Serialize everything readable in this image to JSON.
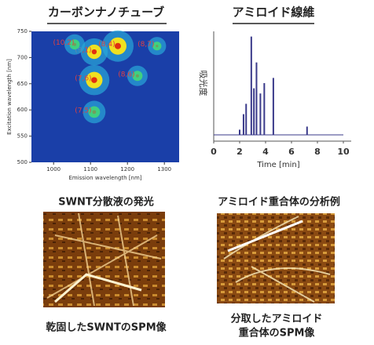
{
  "titles": [
    "カーボンナノチューブ",
    "アミロイド線維"
  ],
  "chart_data": [
    {
      "type": "heatmap",
      "xlabel": "Emission wavelength [nm]",
      "ylabel": "Excitation wavelength [nm]",
      "xlim": [
        940,
        1340
      ],
      "xticks": [
        1000,
        1100,
        1200,
        1300
      ],
      "ylim": [
        500,
        750
      ],
      "yticks": [
        500,
        550,
        600,
        650,
        700,
        750
      ],
      "spots": [
        {
          "x": 1110,
          "y": 711,
          "intensity": 0.8,
          "label": "(9,1)"
        },
        {
          "x": 1174,
          "y": 722,
          "intensity": 1.0,
          "label": "(8,4)"
        },
        {
          "x": 1057,
          "y": 725,
          "intensity": 0.5,
          "label": "(10,2)"
        },
        {
          "x": 1110,
          "y": 657,
          "intensity": 0.95,
          "label": "(7,6)"
        },
        {
          "x": 1110,
          "y": 596,
          "intensity": 0.6,
          "label": "(7,5)"
        },
        {
          "x": 1227,
          "y": 665,
          "intensity": 0.5,
          "label": "(8,6)"
        },
        {
          "x": 1280,
          "y": 722,
          "intensity": 0.4,
          "label": "(8,7)"
        }
      ]
    },
    {
      "type": "spikes",
      "ylabel": "吸光度",
      "xlabel": "Time [min]",
      "color": "#3a3a8a",
      "xlim": [
        0,
        10
      ],
      "xticks": [
        0,
        2,
        4,
        6,
        8,
        10
      ],
      "ylim": [
        0,
        100
      ],
      "x": [
        2.0,
        2.3,
        2.5,
        2.9,
        3.1,
        3.3,
        3.6,
        3.9,
        4.6,
        7.2
      ],
      "values": [
        5,
        20,
        30,
        95,
        45,
        70,
        40,
        50,
        55,
        8
      ]
    }
  ],
  "captions": [
    "SWNT分散液の発光",
    "アミロイド重合体の分析例",
    "乾固したSWNTのSPM像",
    [
      "分取したアミロイド",
      "重合体のSPM像"
    ]
  ]
}
